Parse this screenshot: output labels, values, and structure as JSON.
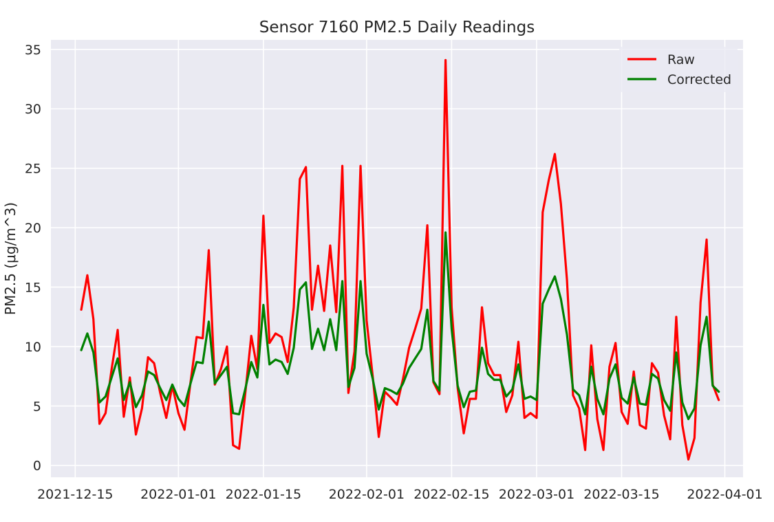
{
  "chart_data": {
    "type": "line",
    "title": "Sensor 7160 PM2.5 Daily Readings",
    "xlabel": "",
    "ylabel": "PM2.5 (μg/m^3)",
    "x_start": "2021-12-16",
    "x_end": "2022-03-31",
    "xlim": [
      "2021-12-11",
      "2022-04-04"
    ],
    "ylim": [
      -1.0,
      35.8
    ],
    "x_ticks": [
      "2021-12-15",
      "2022-01-01",
      "2022-01-15",
      "2022-02-01",
      "2022-02-15",
      "2022-03-01",
      "2022-03-15",
      "2022-04-01"
    ],
    "y_ticks": [
      0,
      5,
      10,
      15,
      20,
      25,
      30,
      35
    ],
    "grid": true,
    "legend_position": "top-right",
    "series": [
      {
        "name": "Raw",
        "color": "#ff0000",
        "values": [
          13.1,
          16.0,
          12.3,
          3.5,
          4.4,
          8.1,
          11.4,
          4.1,
          7.4,
          2.6,
          4.8,
          9.1,
          8.6,
          6.1,
          4.0,
          6.7,
          4.4,
          3.0,
          7.0,
          10.8,
          10.7,
          18.1,
          6.8,
          8.1,
          10.0,
          1.7,
          1.4,
          6.0,
          10.9,
          8.1,
          21.0,
          10.3,
          11.1,
          10.8,
          8.7,
          13.3,
          24.1,
          25.1,
          13.1,
          16.8,
          13.0,
          18.5,
          12.9,
          25.2,
          6.1,
          9.6,
          25.2,
          12.2,
          7.5,
          2.4,
          6.2,
          5.7,
          5.1,
          7.3,
          9.9,
          11.5,
          13.2,
          20.2,
          7.0,
          6.0,
          34.1,
          13.3,
          6.5,
          2.7,
          5.6,
          5.6,
          13.3,
          8.6,
          7.6,
          7.6,
          4.5,
          5.9,
          10.4,
          4.0,
          4.4,
          4.0,
          21.3,
          24.0,
          26.2,
          22.0,
          15.6,
          5.9,
          4.8,
          1.3,
          10.1,
          3.9,
          1.3,
          8.3,
          10.3,
          4.5,
          3.5,
          7.9,
          3.4,
          3.1,
          8.6,
          7.8,
          4.2,
          2.2,
          12.5,
          3.4,
          0.5,
          2.3,
          13.7,
          19.0,
          6.8,
          5.5
        ]
      },
      {
        "name": "Corrected",
        "color": "#008000",
        "values": [
          9.7,
          11.1,
          9.5,
          5.3,
          5.8,
          7.4,
          9.0,
          5.5,
          7.0,
          4.9,
          5.9,
          7.9,
          7.6,
          6.5,
          5.5,
          6.8,
          5.6,
          5.0,
          6.9,
          8.7,
          8.6,
          12.1,
          6.9,
          7.6,
          8.3,
          4.4,
          4.3,
          6.4,
          8.7,
          7.4,
          13.5,
          8.5,
          8.9,
          8.7,
          7.7,
          9.9,
          14.8,
          15.4,
          9.8,
          11.5,
          9.7,
          12.3,
          9.7,
          15.5,
          6.6,
          8.2,
          15.5,
          9.4,
          7.3,
          4.7,
          6.5,
          6.3,
          6.0,
          6.9,
          8.2,
          9.0,
          9.8,
          13.1,
          7.1,
          6.3,
          19.6,
          11.5,
          6.7,
          4.9,
          6.2,
          6.3,
          9.9,
          7.7,
          7.2,
          7.2,
          5.8,
          6.4,
          8.5,
          5.6,
          5.8,
          5.5,
          13.6,
          14.8,
          15.9,
          14.0,
          11.0,
          6.4,
          5.9,
          4.3,
          8.3,
          5.6,
          4.3,
          7.3,
          8.5,
          5.7,
          5.2,
          7.4,
          5.2,
          5.1,
          7.7,
          7.3,
          5.5,
          4.6,
          9.5,
          5.3,
          3.9,
          4.8,
          10.1,
          12.5,
          6.7,
          6.2
        ]
      }
    ]
  }
}
